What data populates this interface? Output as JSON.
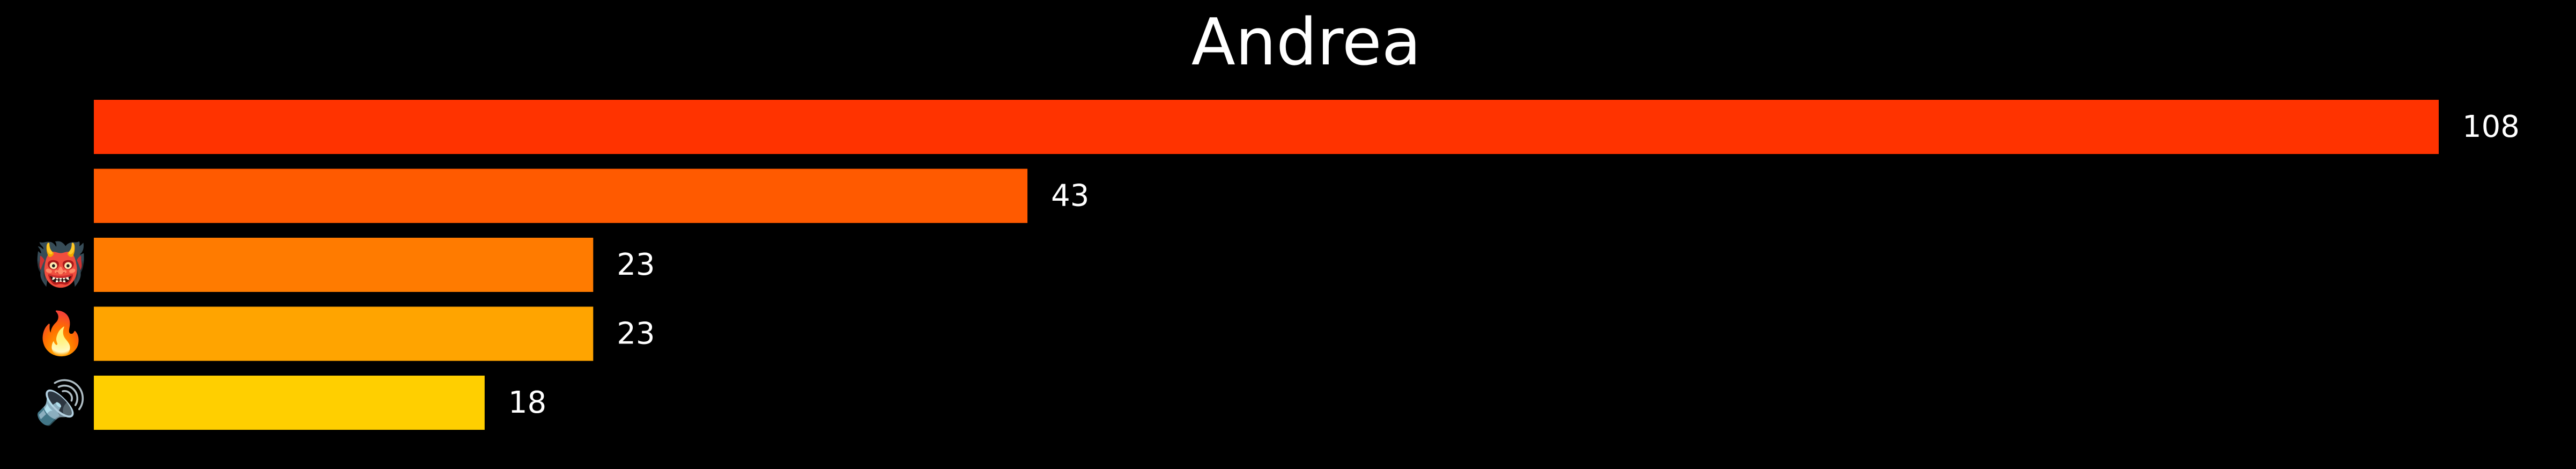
{
  "chart_data": {
    "type": "bar",
    "orientation": "horizontal",
    "title": "Andrea",
    "categories": [
      "😭",
      "😔",
      "👹",
      "🔥",
      "🔊"
    ],
    "category_icons": [
      "loudly-crying-face-icon",
      "pensive-face-icon",
      "ogre-icon",
      "fire-icon",
      "speaker-high-volume-icon"
    ],
    "values": [
      108,
      43,
      23,
      23,
      18
    ],
    "bar_colors": [
      "#ff3300",
      "#ff5a00",
      "#ff7b00",
      "#ffa400",
      "#ffcf00"
    ],
    "background": "#000000",
    "text_color": "#ffffff",
    "xlim": [
      0,
      108
    ],
    "grid": false,
    "legend": "none"
  }
}
